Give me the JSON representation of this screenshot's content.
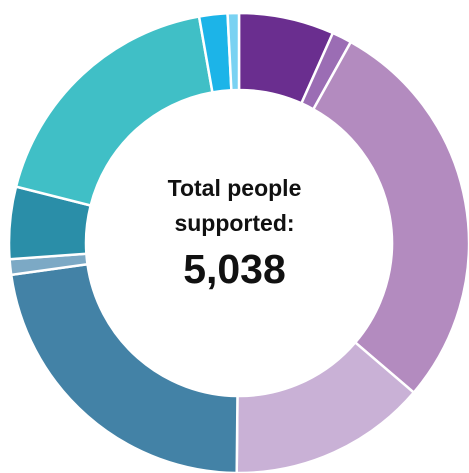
{
  "chart_data": {
    "type": "pie",
    "donut": true,
    "center_title": "Total people supported:",
    "center_value": "5,038",
    "unit": "people",
    "slices": [
      {
        "value": 337,
        "color": "#6a2e8f"
      },
      {
        "value": 70,
        "color": "#9b6db4"
      },
      {
        "value": 1420,
        "color": "#b38bbf"
      },
      {
        "value": 700,
        "color": "#c9b1d6"
      },
      {
        "value": 1140,
        "color": "#4382a6"
      },
      {
        "value": 55,
        "color": "#7ca9c5"
      },
      {
        "value": 255,
        "color": "#2a8ea8"
      },
      {
        "value": 921,
        "color": "#40bfc6"
      },
      {
        "value": 100,
        "color": "#1cb4e8"
      },
      {
        "value": 40,
        "color": "#79d2f2"
      }
    ]
  }
}
